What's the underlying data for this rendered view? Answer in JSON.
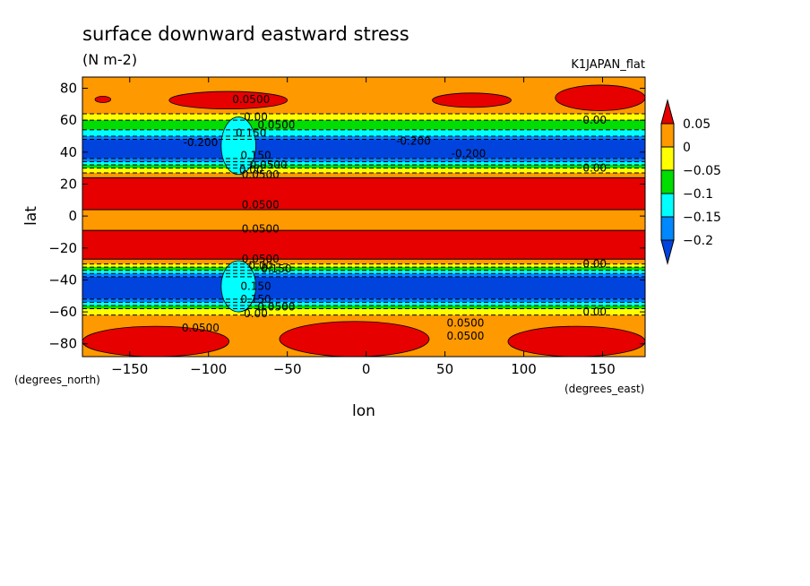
{
  "chart_data": {
    "type": "heatmap",
    "title": "surface downward eastward stress",
    "subtitle": "(N m-2)",
    "dataset_label": "K1JAPAN_flat",
    "xlabel": "lon",
    "ylabel": "lat",
    "x_units": "(degrees_east)",
    "y_units": "(degrees_north)",
    "xlim": [
      -180,
      177
    ],
    "ylim": [
      -88,
      87
    ],
    "x_ticks": [
      -150,
      -100,
      -50,
      0,
      50,
      100,
      150
    ],
    "x_tick_labels": [
      "-150",
      "-100",
      "-50",
      "0",
      "50",
      "100",
      "150"
    ],
    "y_ticks": [
      -80,
      -60,
      -40,
      -20,
      0,
      20,
      40,
      60,
      80
    ],
    "y_tick_labels": [
      "-80",
      "-60",
      "-40",
      "-20",
      "0",
      "20",
      "40",
      "60",
      "80"
    ],
    "colorbar": {
      "levels": [
        0.05,
        0,
        -0.05,
        -0.1,
        -0.15,
        -0.2
      ],
      "labels": [
        "0.05",
        "0",
        "-0.05",
        "-0.1",
        "-0.15",
        "-0.2"
      ],
      "colors": [
        "#e60000",
        "#ff9900",
        "#ffff00",
        "#00dd00",
        "#00ffff",
        "#0088ff",
        "#0044dd"
      ]
    },
    "bands": [
      {
        "lat": [
          64,
          87
        ],
        "value": 0.02
      },
      {
        "lat": [
          60,
          64
        ],
        "value": -0.02
      },
      {
        "lat": [
          54,
          60
        ],
        "value": -0.07
      },
      {
        "lat": [
          50,
          54
        ],
        "value": -0.12
      },
      {
        "lat": [
          48,
          50
        ],
        "value": -0.17
      },
      {
        "lat": [
          36,
          48
        ],
        "value": -0.22
      },
      {
        "lat": [
          34,
          36
        ],
        "value": -0.17
      },
      {
        "lat": [
          32,
          34
        ],
        "value": -0.12
      },
      {
        "lat": [
          30,
          32
        ],
        "value": -0.07
      },
      {
        "lat": [
          27,
          30
        ],
        "value": -0.02
      },
      {
        "lat": [
          24,
          27
        ],
        "value": 0.02
      },
      {
        "lat": [
          4,
          24
        ],
        "value": 0.07
      },
      {
        "lat": [
          -9,
          4
        ],
        "value": 0.02
      },
      {
        "lat": [
          -27,
          -9
        ],
        "value": 0.07
      },
      {
        "lat": [
          -30,
          -27
        ],
        "value": 0.02
      },
      {
        "lat": [
          -32,
          -30
        ],
        "value": -0.02
      },
      {
        "lat": [
          -34,
          -32
        ],
        "value": -0.07
      },
      {
        "lat": [
          -36,
          -34
        ],
        "value": -0.12
      },
      {
        "lat": [
          -38,
          -36
        ],
        "value": -0.17
      },
      {
        "lat": [
          -52,
          -38
        ],
        "value": -0.22
      },
      {
        "lat": [
          -54,
          -52
        ],
        "value": -0.17
      },
      {
        "lat": [
          -56,
          -54
        ],
        "value": -0.12
      },
      {
        "lat": [
          -58,
          -56
        ],
        "value": -0.07
      },
      {
        "lat": [
          -62,
          -58
        ],
        "value": -0.02
      },
      {
        "lat": [
          -88,
          -62
        ],
        "value": 0.02
      }
    ],
    "patches": [
      {
        "lon": [
          -125,
          -50
        ],
        "lat": [
          67,
          78
        ],
        "value": 0.07
      },
      {
        "lon": [
          42,
          92
        ],
        "lat": [
          68,
          77
        ],
        "value": 0.07
      },
      {
        "lon": [
          120,
          177
        ],
        "lat": [
          66,
          82
        ],
        "value": 0.07
      },
      {
        "lon": [
          -172,
          -162
        ],
        "lat": [
          71,
          75
        ],
        "value": 0.07
      },
      {
        "lon": [
          -180,
          -87
        ],
        "lat": [
          -88,
          -69
        ],
        "value": 0.07
      },
      {
        "lon": [
          -55,
          40
        ],
        "lat": [
          -88,
          -66
        ],
        "value": 0.07
      },
      {
        "lon": [
          90,
          177
        ],
        "lat": [
          -88,
          -69
        ],
        "value": 0.07
      },
      {
        "lon": [
          -92,
          -70
        ],
        "lat": [
          26,
          62
        ],
        "value": -0.14
      },
      {
        "lon": [
          -92,
          -70
        ],
        "lat": [
          -60,
          -28
        ],
        "value": -0.14
      }
    ],
    "contour_labels": [
      {
        "lon": -73,
        "lat": 73,
        "text": "0.0500"
      },
      {
        "lon": -70,
        "lat": 62,
        "text": "0.00"
      },
      {
        "lon": -57,
        "lat": 57,
        "text": "0.0500"
      },
      {
        "lon": -73,
        "lat": 52,
        "text": "0.150"
      },
      {
        "lon": -105,
        "lat": 46,
        "text": "-0.200"
      },
      {
        "lon": 30,
        "lat": 47,
        "text": "-0.200"
      },
      {
        "lon": 65,
        "lat": 39,
        "text": "-0.200"
      },
      {
        "lon": -70,
        "lat": 38,
        "text": "0.150"
      },
      {
        "lon": -62,
        "lat": 32,
        "text": "0.0500"
      },
      {
        "lon": -73,
        "lat": 29,
        "text": "0.00"
      },
      {
        "lon": -67,
        "lat": 26,
        "text": "0.0500"
      },
      {
        "lon": -67,
        "lat": 7,
        "text": "0.0500"
      },
      {
        "lon": -67,
        "lat": -8,
        "text": "0.0500"
      },
      {
        "lon": -67,
        "lat": -27,
        "text": "0.0500"
      },
      {
        "lon": -67,
        "lat": -31,
        "text": "0.00"
      },
      {
        "lon": -57,
        "lat": -33,
        "text": "0.150"
      },
      {
        "lon": -70,
        "lat": -44,
        "text": "0.150"
      },
      {
        "lon": -70,
        "lat": -52,
        "text": "0.150"
      },
      {
        "lon": -57,
        "lat": -57,
        "text": "0.0500"
      },
      {
        "lon": -70,
        "lat": -61,
        "text": "0.00"
      },
      {
        "lon": -105,
        "lat": -70,
        "text": "0.0500"
      },
      {
        "lon": 63,
        "lat": -67,
        "text": "0.0500"
      },
      {
        "lon": 63,
        "lat": -75,
        "text": "0.0500"
      },
      {
        "lon": 145,
        "lat": 60,
        "text": "0.00"
      },
      {
        "lon": 145,
        "lat": 30,
        "text": "0.00"
      },
      {
        "lon": 145,
        "lat": -30,
        "text": "0.00"
      },
      {
        "lon": 145,
        "lat": -60,
        "text": "0.00"
      }
    ]
  }
}
